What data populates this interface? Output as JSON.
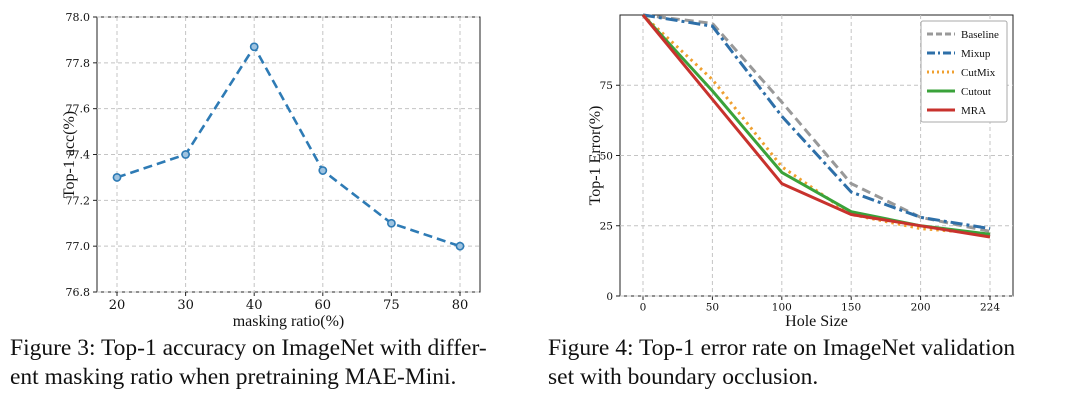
{
  "chart_data": [
    {
      "type": "line",
      "title": "",
      "xlabel": "masking ratio(%)",
      "ylabel": "Top-1 acc(%)",
      "categories": [
        "20",
        "30",
        "40",
        "60",
        "75",
        "80"
      ],
      "series": [
        {
          "values": [
            77.3,
            77.4,
            77.87,
            77.33,
            77.1,
            77.0
          ],
          "color": "#2e7bb5",
          "style": "dashed",
          "marker": "circle"
        }
      ],
      "ylim": [
        76.8,
        78.0
      ],
      "yticks": [
        "76.8",
        "77.0",
        "77.2",
        "77.4",
        "77.6",
        "77.8",
        "78.0"
      ],
      "grid": true,
      "legend": "none"
    },
    {
      "type": "line",
      "title": "",
      "xlabel": "Hole Size",
      "ylabel": "Top-1 Error(%)",
      "categories": [
        "0",
        "50",
        "100",
        "150",
        "200",
        "224"
      ],
      "series": [
        {
          "name": "Baseline",
          "values": [
            100,
            97,
            69,
            40,
            28,
            23
          ],
          "color": "#999999",
          "style": "dashed"
        },
        {
          "name": "Mixup",
          "values": [
            100,
            96,
            64,
            37,
            28,
            24
          ],
          "color": "#2e6fa8",
          "style": "dashdot"
        },
        {
          "name": "CutMix",
          "values": [
            100,
            77,
            46,
            29,
            24,
            22
          ],
          "color": "#f0a030",
          "style": "dotted"
        },
        {
          "name": "Cutout",
          "values": [
            100,
            73,
            44,
            30,
            25,
            22
          ],
          "color": "#3aa23a",
          "style": "solid"
        },
        {
          "name": "MRA",
          "values": [
            100,
            70,
            40,
            29,
            25,
            21
          ],
          "color": "#c8322d",
          "style": "solid"
        }
      ],
      "ylim": [
        0,
        100
      ],
      "yticks": [
        "0",
        "25",
        "50",
        "75"
      ],
      "grid": true,
      "legend": "top-right"
    }
  ],
  "captions": {
    "fig3": [
      "Figure 3: Top-1 accuracy on ImageNet with differ-",
      "ent masking ratio when pretraining MAE-Mini."
    ],
    "fig4": [
      "Figure 4: Top-1 error rate on ImageNet validation",
      "set with boundary occlusion."
    ]
  }
}
